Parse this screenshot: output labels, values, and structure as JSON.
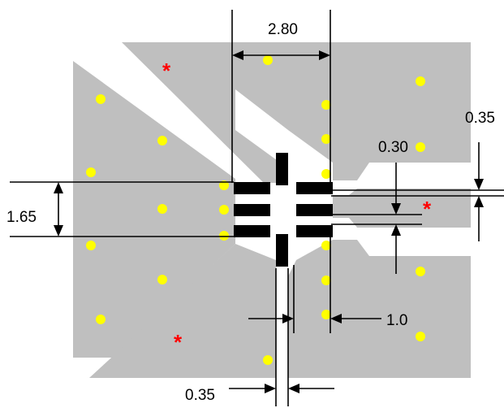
{
  "dimensions": {
    "pad_pitch_width": "2.80",
    "trace_width": "0.35",
    "gap": "0.30",
    "pad_span": "1.65",
    "via_offset": "1.0",
    "pad_width_bottom": "0.35"
  },
  "markers": {
    "star_symbol": "*"
  },
  "colors": {
    "copper": "#bfbfbf",
    "via": "#ffff00",
    "pad": "#000000",
    "marker": "#ff0000"
  }
}
